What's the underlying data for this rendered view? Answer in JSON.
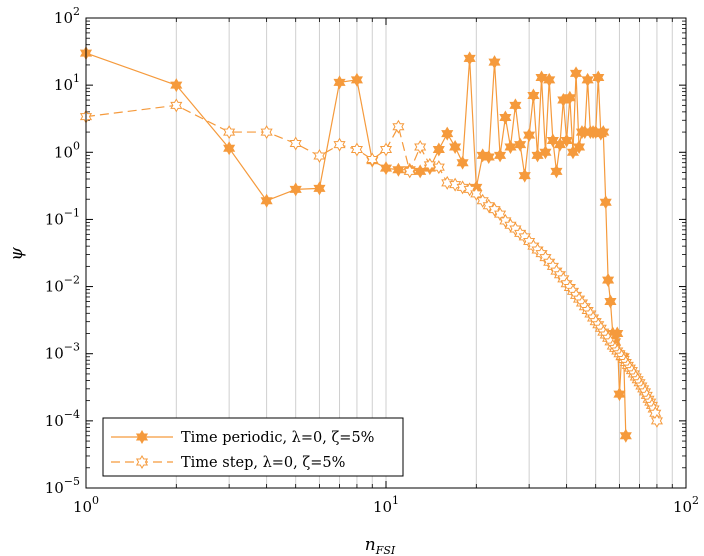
{
  "chart_data": {
    "type": "line",
    "xscale": "log",
    "yscale": "log",
    "xlim": [
      1,
      100
    ],
    "ylim": [
      1e-05,
      100
    ],
    "grid": "vertical",
    "legend_position": "bottom-left",
    "xlabel": {
      "base": "n",
      "subscript": "FSI"
    },
    "ylabel": "ψ",
    "x_ticks": [
      {
        "base": "10",
        "exp": "0"
      },
      {
        "base": "10",
        "exp": "1"
      },
      {
        "base": "10",
        "exp": "2"
      }
    ],
    "y_ticks": [
      {
        "base": "10",
        "exp": "−5"
      },
      {
        "base": "10",
        "exp": "−4"
      },
      {
        "base": "10",
        "exp": "−3"
      },
      {
        "base": "10",
        "exp": "−2"
      },
      {
        "base": "10",
        "exp": "−1"
      },
      {
        "base": "10",
        "exp": "0"
      },
      {
        "base": "10",
        "exp": "1"
      },
      {
        "base": "10",
        "exp": "2"
      }
    ],
    "series": [
      {
        "name": "Time periodic, λ=0, ζ=5%",
        "style": "solid",
        "marker": "filled-hexagram",
        "color": "#F59A3C",
        "x": [
          1,
          2,
          3,
          4,
          5,
          6,
          7,
          8,
          9,
          10,
          11,
          12,
          13,
          14,
          15,
          16,
          17,
          18,
          19,
          20,
          21,
          22,
          23,
          24,
          25,
          26,
          27,
          28,
          29,
          30,
          31,
          32,
          33,
          34,
          35,
          36,
          37,
          38,
          39,
          40,
          41,
          42,
          43,
          44,
          45,
          46,
          47,
          48,
          49,
          50,
          51,
          52,
          53,
          54,
          55,
          56,
          57,
          58,
          59,
          60,
          61,
          62,
          63
        ],
        "y": [
          30,
          10,
          1.15,
          0.19,
          0.28,
          0.29,
          11,
          12,
          0.75,
          0.58,
          0.55,
          0.55,
          0.52,
          0.58,
          1.1,
          1.9,
          1.2,
          0.7,
          25,
          0.3,
          0.9,
          0.85,
          22,
          0.9,
          3.3,
          1.2,
          5,
          1.3,
          0.45,
          1.8,
          7,
          0.9,
          13,
          1.0,
          12,
          1.5,
          0.52,
          1.3,
          6,
          1.5,
          6.5,
          1.0,
          15,
          1.2,
          2.0,
          2.0,
          12,
          2.0,
          2.0,
          2.0,
          13,
          1.9,
          2.0,
          0.18,
          0.0125,
          0.006,
          0.002,
          0.0015,
          0.002,
          0.00025,
          0.0009,
          0.0009,
          6e-05
        ]
      },
      {
        "name": "Time step, λ=0, ζ=5%",
        "style": "dashed",
        "marker": "open-hexagram",
        "color": "#F59A3C",
        "x": [
          1,
          2,
          3,
          4,
          5,
          6,
          7,
          8,
          9,
          10,
          11,
          12,
          13,
          14,
          15,
          16,
          17,
          18,
          19,
          20,
          21,
          22,
          23,
          24,
          25,
          26,
          27,
          28,
          29,
          30,
          31,
          32,
          33,
          34,
          35,
          36,
          37,
          38,
          39,
          40,
          41,
          42,
          43,
          44,
          45,
          46,
          47,
          48,
          49,
          50,
          51,
          52,
          53,
          54,
          55,
          56,
          57,
          58,
          59,
          60,
          61,
          62,
          63,
          64,
          65,
          66,
          67,
          68,
          69,
          70,
          71,
          72,
          73,
          74,
          75,
          76,
          77,
          78,
          79,
          80
        ],
        "y": [
          3.4,
          5.0,
          2.0,
          2.0,
          1.35,
          0.88,
          1.3,
          1.1,
          0.78,
          1.1,
          2.4,
          0.52,
          1.2,
          0.65,
          0.6,
          0.35,
          0.33,
          0.3,
          0.28,
          0.24,
          0.19,
          0.16,
          0.14,
          0.12,
          0.095,
          0.082,
          0.072,
          0.062,
          0.055,
          0.047,
          0.04,
          0.035,
          0.031,
          0.027,
          0.023,
          0.02,
          0.017,
          0.015,
          0.013,
          0.011,
          0.0097,
          0.0085,
          0.0074,
          0.0065,
          0.0057,
          0.005,
          0.0044,
          0.0039,
          0.0034,
          0.003,
          0.0027,
          0.0024,
          0.0021,
          0.0019,
          0.0017,
          0.0015,
          0.0013,
          0.0012,
          0.0011,
          0.001,
          0.00092,
          0.00082,
          0.00074,
          0.00067,
          0.00061,
          0.00056,
          0.0005,
          0.00045,
          0.00041,
          0.00037,
          0.00033,
          0.0003,
          0.00027,
          0.00024,
          0.00021,
          0.00019,
          0.00017,
          0.00015,
          0.00013,
          0.0001
        ]
      }
    ]
  }
}
